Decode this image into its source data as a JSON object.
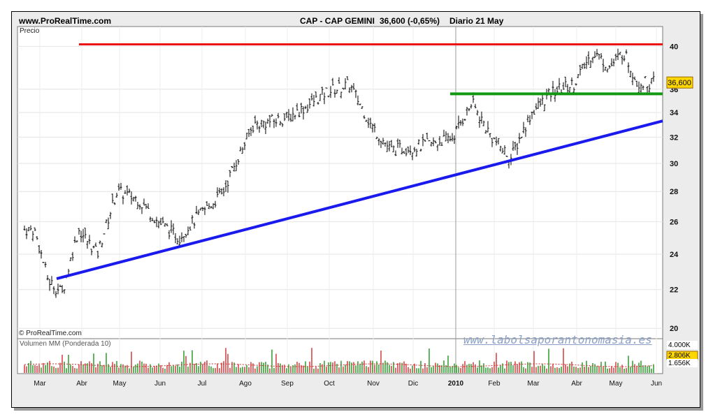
{
  "header": {
    "site": "www.ProRealTime.com",
    "instrument": "CAP - CAP GEMINI",
    "quote": "36,600 (-0,65%)",
    "period": "Diario  21 May"
  },
  "price_panel": {
    "label": "Precio",
    "copyright": "© ProRealTime.com",
    "last_price_tag": "36,600"
  },
  "volume_panel": {
    "label": "Volumen MM (Ponderada 10)",
    "tags": [
      "4.000K",
      "2.806K",
      "1.656K"
    ]
  },
  "watermark": "www.labolsaporantonomasia.es",
  "colors": {
    "support_trend": "#1a1aee",
    "resistance": "#ee1111",
    "support_horizontal": "#119911",
    "price_bars": "#000000",
    "volume_up": "#2a9a2a",
    "volume_down": "#d43a3a"
  },
  "chart_data": {
    "type": "ohlc-bar",
    "y_scale": "log",
    "ylim": [
      19.5,
      42
    ],
    "yticks": [
      "20",
      "22",
      "24",
      "26",
      "28",
      "30",
      "32",
      "34",
      "36",
      "40"
    ],
    "x_labels": [
      "Mar",
      "Abr",
      "May",
      "Jun",
      "Jul",
      "Ago",
      "Sep",
      "Oct",
      "Nov",
      "Dic",
      "2010",
      "Feb",
      "Mar",
      "Abr",
      "May",
      "Jun"
    ],
    "last_price": 36.6,
    "lines": [
      {
        "name": "trendline",
        "from": [
          "Mar",
          22.6
        ],
        "to": [
          "Jun",
          33.3
        ]
      },
      {
        "name": "resistance",
        "value": 40.2,
        "from": "Abr",
        "to": "Jun"
      },
      {
        "name": "support",
        "value": 35.6,
        "from": "2010",
        "to": "Jun"
      }
    ],
    "price_path": [
      [
        "Mar",
        25.5
      ],
      [
        "Mar",
        22.5
      ],
      [
        "Mar",
        21.8
      ],
      [
        "Abr",
        25.5
      ],
      [
        "Abr",
        24.0
      ],
      [
        "May",
        28.0
      ],
      [
        "May",
        27.5
      ],
      [
        "Jun",
        26.0
      ],
      [
        "Jun",
        25.0
      ],
      [
        "Jul",
        26.5
      ],
      [
        "Jul",
        27.8
      ],
      [
        "Ago",
        33.0
      ],
      [
        "Sep",
        33.5
      ],
      [
        "Sep",
        34.5
      ],
      [
        "Oct",
        35.8
      ],
      [
        "Oct",
        36.4
      ],
      [
        "Nov",
        33.0
      ],
      [
        "Nov",
        31.0
      ],
      [
        "Dic",
        31.2
      ],
      [
        "Dic",
        31.5
      ],
      [
        "2010",
        32.0
      ],
      [
        "2010",
        34.8
      ],
      [
        "Feb",
        32.0
      ],
      [
        "Feb",
        30.4
      ],
      [
        "Mar",
        34.0
      ],
      [
        "Mar",
        35.8
      ],
      [
        "Abr",
        36.5
      ],
      [
        "Abr",
        39.5
      ],
      [
        "May",
        38.0
      ],
      [
        "May",
        39.5
      ],
      [
        "May",
        36.6
      ]
    ]
  }
}
